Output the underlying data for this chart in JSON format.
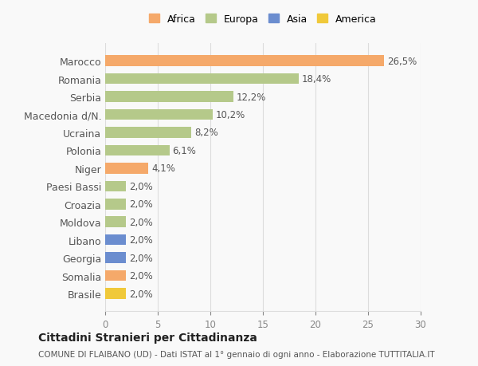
{
  "categories": [
    "Brasile",
    "Somalia",
    "Georgia",
    "Libano",
    "Moldova",
    "Croazia",
    "Paesi Bassi",
    "Niger",
    "Polonia",
    "Ucraina",
    "Macedonia d/N.",
    "Serbia",
    "Romania",
    "Marocco"
  ],
  "values": [
    2.0,
    2.0,
    2.0,
    2.0,
    2.0,
    2.0,
    2.0,
    4.1,
    6.1,
    8.2,
    10.2,
    12.2,
    18.4,
    26.5
  ],
  "colors": [
    "#f0c93a",
    "#f5a96a",
    "#6b8dcf",
    "#6b8dcf",
    "#b5c98a",
    "#b5c98a",
    "#b5c98a",
    "#f5a96a",
    "#b5c98a",
    "#b5c98a",
    "#b5c98a",
    "#b5c98a",
    "#b5c98a",
    "#f5a96a"
  ],
  "labels": [
    "2,0%",
    "2,0%",
    "2,0%",
    "2,0%",
    "2,0%",
    "2,0%",
    "2,0%",
    "4,1%",
    "6,1%",
    "8,2%",
    "10,2%",
    "12,2%",
    "18,4%",
    "26,5%"
  ],
  "legend_names": [
    "Africa",
    "Europa",
    "Asia",
    "America"
  ],
  "legend_colors": [
    "#f5a96a",
    "#b5c98a",
    "#6b8dcf",
    "#f0c93a"
  ],
  "xlim": [
    0,
    30
  ],
  "xticks": [
    0,
    5,
    10,
    15,
    20,
    25,
    30
  ],
  "title": "Cittadini Stranieri per Cittadinanza",
  "subtitle": "COMUNE DI FLAIBANO (UD) - Dati ISTAT al 1° gennaio di ogni anno - Elaborazione TUTTITALIA.IT",
  "bg_color": "#f9f9f9",
  "bar_height": 0.6,
  "grid_color": "#dddddd"
}
